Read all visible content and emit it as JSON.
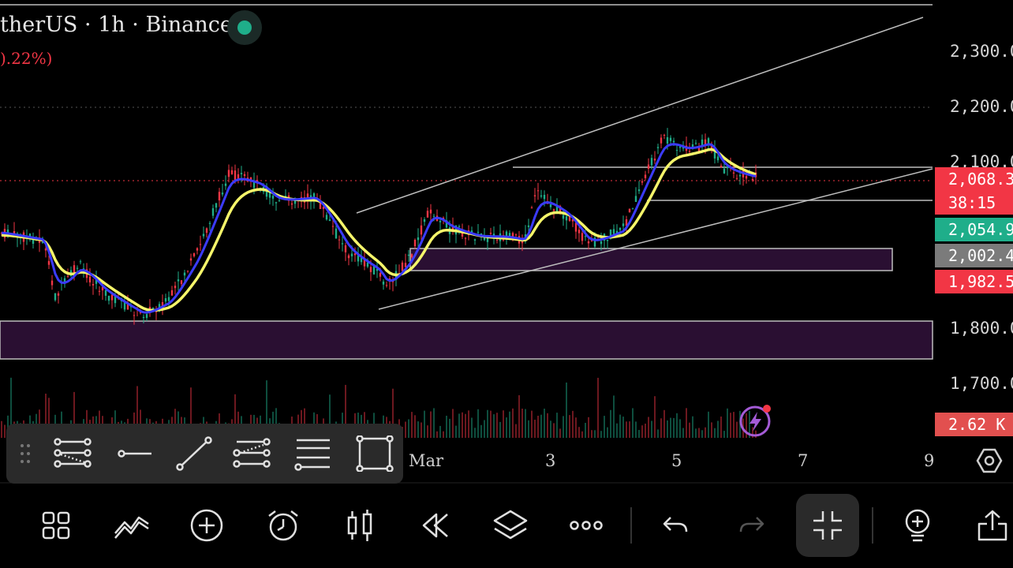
{
  "header": {
    "title": "therUS · 1h · Binance",
    "change": ").22%)"
  },
  "price_axis": {
    "ticks": [
      "2,300.0",
      "2,200.0",
      "2,100.0",
      "1,800.0",
      "1,700.0"
    ]
  },
  "price_boxes": {
    "current_price": "2,068.3",
    "countdown": "38:15",
    "green_level": "2,054.9",
    "gray_level": "2,002.4",
    "red_level": "1,982.5",
    "volume": "2.62 K"
  },
  "time_axis": {
    "labels": [
      "Mar",
      "3",
      "5",
      "7",
      "9"
    ]
  },
  "colors": {
    "up": "#1fae8a",
    "down": "#f23645",
    "ema_fast": "#3b3bff",
    "ema_slow": "#f5f56a",
    "zone": "#2a0f32"
  },
  "drawing_tools": [
    {
      "icon": "drag-handle-icon"
    },
    {
      "icon": "multiline-tool-icon"
    },
    {
      "icon": "horizontal-line-icon"
    },
    {
      "icon": "trend-line-icon"
    },
    {
      "icon": "channel-tool-icon"
    },
    {
      "icon": "fib-levels-icon"
    },
    {
      "icon": "rectangle-tool-icon"
    }
  ],
  "bottom_toolbar": [
    {
      "icon": "grid-icon"
    },
    {
      "icon": "indicators-icon"
    },
    {
      "icon": "add-icon"
    },
    {
      "icon": "alarm-icon"
    },
    {
      "icon": "candles-icon"
    },
    {
      "icon": "replay-icon"
    },
    {
      "icon": "layers-icon"
    },
    {
      "icon": "more-icon"
    },
    {
      "icon": "undo-icon"
    },
    {
      "icon": "redo-icon"
    },
    {
      "icon": "collapse-icon"
    },
    {
      "icon": "idea-icon"
    },
    {
      "icon": "share-icon"
    }
  ]
}
